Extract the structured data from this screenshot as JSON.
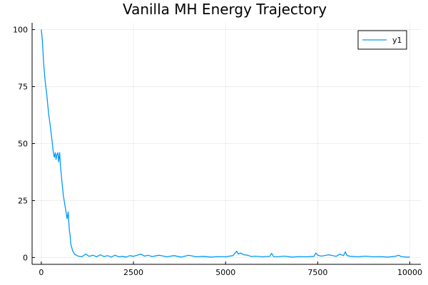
{
  "chart_data": {
    "type": "line",
    "title": "Vanilla MH Energy Trajectory",
    "xlabel": "",
    "ylabel": "",
    "xlim": [
      -250,
      10300
    ],
    "ylim": [
      -3,
      103
    ],
    "xticks": [
      0,
      2500,
      5000,
      7500,
      10000
    ],
    "yticks": [
      0,
      25,
      50,
      75,
      100
    ],
    "grid": true,
    "legend_position": "top-right",
    "series": [
      {
        "name": "y1",
        "color": "#009AFA",
        "x": [
          0,
          30,
          60,
          100,
          150,
          200,
          250,
          300,
          320,
          350,
          380,
          400,
          420,
          450,
          470,
          500,
          520,
          550,
          580,
          600,
          650,
          700,
          730,
          760,
          780,
          800,
          850,
          900,
          950,
          1000,
          1050,
          1100,
          1200,
          1300,
          1400,
          1500,
          1600,
          1700,
          1800,
          1900,
          2000,
          2100,
          2200,
          2300,
          2400,
          2500,
          2600,
          2700,
          2800,
          2900,
          3000,
          3200,
          3400,
          3600,
          3800,
          4000,
          4200,
          4400,
          4600,
          4800,
          5000,
          5200,
          5300,
          5350,
          5400,
          5500,
          5600,
          5700,
          5800,
          6000,
          6200,
          6250,
          6300,
          6400,
          6600,
          6800,
          7000,
          7200,
          7400,
          7450,
          7500,
          7600,
          7800,
          8000,
          8100,
          8200,
          8250,
          8300,
          8400,
          8600,
          8800,
          9000,
          9200,
          9400,
          9600,
          9700,
          9750,
          9800,
          9900,
          10000
        ],
        "values": [
          100,
          95,
          86,
          78,
          71,
          63,
          57,
          50,
          47,
          44,
          46,
          43,
          45,
          46,
          42,
          46,
          40,
          35,
          30,
          27,
          22,
          17,
          20,
          12,
          10,
          6,
          3,
          1.5,
          1,
          0.6,
          0.5,
          0.3,
          1.5,
          0.5,
          1,
          0.3,
          1.2,
          0.4,
          0.8,
          0.2,
          1,
          0.3,
          0.5,
          0.2,
          0.8,
          0.5,
          1,
          1.5,
          0.6,
          1,
          0.4,
          1,
          0.3,
          0.8,
          0.2,
          1,
          0.3,
          0.5,
          0.2,
          0.4,
          0.3,
          0.8,
          2.8,
          1.5,
          2,
          1.2,
          1,
          0.4,
          0.6,
          0.3,
          0.5,
          1.8,
          0.4,
          0.3,
          0.6,
          0.2,
          0.4,
          0.3,
          0.5,
          2,
          1,
          0.6,
          1.2,
          0.5,
          1.5,
          0.8,
          2.5,
          0.8,
          0.5,
          0.3,
          0.6,
          0.3,
          0.4,
          0.2,
          0.5,
          1,
          0.5,
          0.3,
          0.2,
          0.2
        ]
      }
    ]
  }
}
